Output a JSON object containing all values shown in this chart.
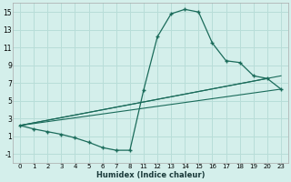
{
  "xlabel": "Humidex (Indice chaleur)",
  "bg_color": "#d4efeb",
  "line_color": "#1a6b5a",
  "grid_color": "#b8ddd8",
  "ylim": [
    -2,
    16
  ],
  "yticks": [
    -1,
    1,
    3,
    5,
    7,
    9,
    11,
    13,
    15
  ],
  "xlabels": [
    "0",
    "1",
    "2",
    "3",
    "4",
    "5",
    "6",
    "7",
    "8",
    "11",
    "12",
    "13",
    "14",
    "15",
    "16",
    "17",
    "18",
    "19",
    "20",
    "23"
  ],
  "line1_xi": [
    0,
    1,
    2,
    3,
    4,
    5,
    6,
    7,
    8,
    9,
    10,
    11,
    12,
    13,
    14,
    15,
    16,
    17,
    18,
    19
  ],
  "line1_y": [
    2.2,
    1.8,
    1.5,
    1.2,
    0.8,
    0.3,
    -0.3,
    -0.6,
    -0.6,
    6.2,
    12.2,
    14.8,
    15.3,
    15.0,
    11.5,
    9.5,
    9.3,
    7.8,
    7.5,
    6.3
  ],
  "line2_xi": [
    0,
    19
  ],
  "line2_y": [
    2.2,
    7.8
  ],
  "line3_xi": [
    0,
    18
  ],
  "line3_y": [
    2.2,
    7.5
  ],
  "line4_xi": [
    0,
    19
  ],
  "line4_y": [
    2.2,
    6.3
  ]
}
